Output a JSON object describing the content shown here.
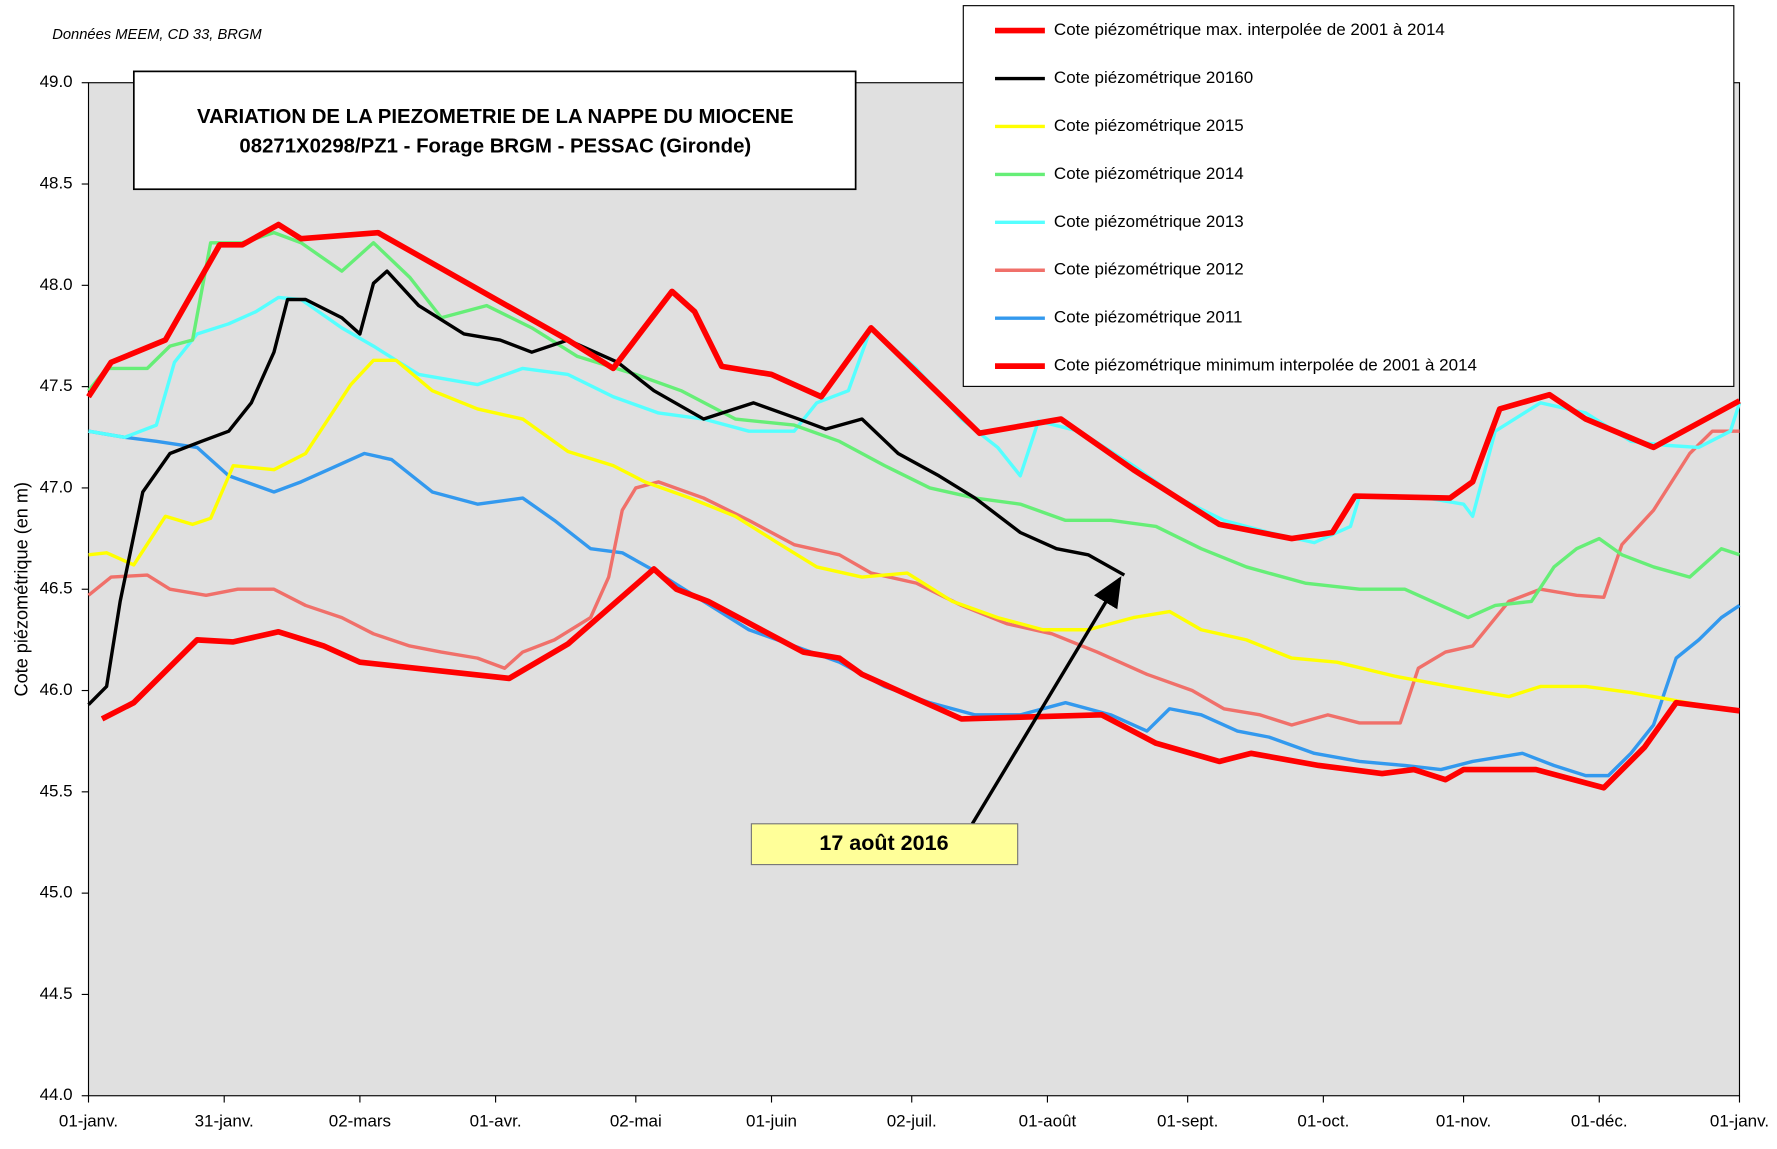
{
  "chart_data": {
    "type": "line",
    "title": [
      "VARIATION DE LA PIEZOMETRIE DE LA NAPPE DU MIOCENE",
      "08271X0298/PZ1  - Forage BRGM - PESSAC (Gironde)"
    ],
    "source": "Données MEEM, CD 33, BRGM",
    "y_label": "Cote piézométrique (en m)",
    "annotation": "17 août 2016",
    "xlim": [
      0,
      365
    ],
    "xticks": [
      {
        "value": 0,
        "label": "01-janv."
      },
      {
        "value": 30,
        "label": "31-janv."
      },
      {
        "value": 60,
        "label": "02-mars"
      },
      {
        "value": 90,
        "label": "01-avr."
      },
      {
        "value": 121,
        "label": "02-mai"
      },
      {
        "value": 151,
        "label": "01-juin"
      },
      {
        "value": 182,
        "label": "02-juil."
      },
      {
        "value": 212,
        "label": "01-août"
      },
      {
        "value": 243,
        "label": "01-sept."
      },
      {
        "value": 273,
        "label": "01-oct."
      },
      {
        "value": 304,
        "label": "01-nov."
      },
      {
        "value": 334,
        "label": "01-déc."
      },
      {
        "value": 365,
        "label": "01-janv."
      }
    ],
    "ylim": [
      44,
      49
    ],
    "yticks": [
      {
        "value": 44,
        "label": "44.0"
      },
      44.5,
      {
        "value": 45,
        "label": "45.0"
      },
      45.5,
      {
        "value": 46,
        "label": "46.0"
      },
      46.5,
      {
        "value": 47,
        "label": "47.0"
      },
      47.5,
      {
        "value": 48,
        "label": "48.0"
      },
      48.5,
      {
        "value": 49,
        "label": "49.0"
      }
    ],
    "grid": false,
    "series": [
      {
        "name": "Cote piézométrique max. interpolée de 2001 à 2014",
        "color": "#ff0000",
        "x": [
          0,
          5,
          17,
          29,
          34,
          42,
          47,
          64,
          106,
          116,
          129,
          134,
          140,
          151,
          162,
          173,
          197,
          215,
          231,
          250,
          266,
          275,
          280,
          301,
          306,
          312,
          323,
          331,
          346,
          365
        ],
        "values": [
          47.45,
          47.62,
          47.73,
          48.2,
          48.2,
          48.3,
          48.23,
          48.26,
          47.73,
          47.59,
          47.97,
          47.87,
          47.6,
          47.56,
          47.45,
          47.79,
          47.27,
          47.34,
          47.09,
          46.82,
          46.75,
          46.78,
          46.96,
          46.95,
          47.03,
          47.39,
          47.46,
          47.34,
          47.2,
          47.43
        ]
      },
      {
        "name": "Cote piézométrique 20160",
        "color": "#000000",
        "x": [
          0,
          4,
          7,
          12,
          18,
          25,
          31,
          36,
          41,
          44,
          48,
          56,
          60,
          63,
          66,
          73,
          83,
          91,
          98,
          106,
          117,
          125,
          136,
          147,
          157,
          163,
          171,
          179,
          188,
          196,
          206,
          214,
          221,
          229
        ],
        "values": [
          45.93,
          46.02,
          46.44,
          46.98,
          47.17,
          47.23,
          47.28,
          47.42,
          47.67,
          47.93,
          47.93,
          47.84,
          47.76,
          48.01,
          48.07,
          47.9,
          47.76,
          47.73,
          47.67,
          47.73,
          47.62,
          47.48,
          47.34,
          47.42,
          47.34,
          47.29,
          47.34,
          47.17,
          47.06,
          46.95,
          46.78,
          46.7,
          46.67,
          46.57
        ]
      },
      {
        "name": "Cote piézométrique 2015",
        "color": "#ffff00",
        "x": [
          0,
          4,
          10,
          17,
          23,
          27,
          32,
          41,
          48,
          53,
          58,
          63,
          68,
          76,
          86,
          96,
          106,
          116,
          123,
          133,
          143,
          153,
          161,
          171,
          181,
          191,
          201,
          211,
          221,
          231,
          239,
          246,
          256,
          266,
          276,
          289,
          301,
          314,
          321,
          331,
          341,
          351,
          361
        ],
        "values": [
          46.67,
          46.68,
          46.62,
          46.86,
          46.82,
          46.85,
          47.11,
          47.09,
          47.17,
          47.34,
          47.51,
          47.63,
          47.63,
          47.48,
          47.39,
          47.34,
          47.18,
          47.11,
          47.03,
          46.95,
          46.86,
          46.72,
          46.61,
          46.56,
          46.58,
          46.44,
          46.36,
          46.3,
          46.3,
          46.36,
          46.39,
          46.3,
          46.25,
          46.16,
          46.14,
          46.07,
          46.02,
          45.97,
          46.02,
          46.02,
          45.99,
          45.95,
          45.91
        ]
      },
      {
        "name": "Cote piézométrique 2014",
        "color": "#66ee77",
        "x": [
          0,
          4,
          13,
          18,
          23,
          27,
          34,
          41,
          47,
          56,
          63,
          71,
          78,
          88,
          98,
          108,
          121,
          131,
          143,
          156,
          166,
          176,
          186,
          196,
          206,
          216,
          226,
          236,
          246,
          256,
          269,
          281,
          291,
          299,
          305,
          311,
          319,
          324,
          329,
          334,
          339,
          346,
          354,
          361,
          365
        ],
        "values": [
          47.48,
          47.59,
          47.59,
          47.7,
          47.73,
          48.21,
          48.21,
          48.26,
          48.21,
          48.07,
          48.21,
          48.04,
          47.84,
          47.9,
          47.79,
          47.65,
          47.56,
          47.48,
          47.34,
          47.31,
          47.23,
          47.11,
          47.0,
          46.95,
          46.92,
          46.84,
          46.84,
          46.81,
          46.7,
          46.61,
          46.53,
          46.5,
          46.5,
          46.42,
          46.36,
          46.42,
          46.44,
          46.61,
          46.7,
          46.75,
          46.67,
          46.61,
          46.56,
          46.7,
          46.67
        ]
      },
      {
        "name": "Cote piézométrique 2013",
        "color": "#55ffff",
        "x": [
          0,
          8,
          15,
          19,
          24,
          31,
          37,
          42,
          47,
          56,
          63,
          73,
          86,
          96,
          106,
          116,
          126,
          136,
          146,
          156,
          161,
          168,
          173,
          183,
          193,
          201,
          206,
          210,
          219,
          231,
          241,
          251,
          261,
          271,
          279,
          281,
          296,
          304,
          306,
          311,
          321,
          331,
          341,
          349,
          356,
          363,
          365
        ],
        "values": [
          47.28,
          47.25,
          47.31,
          47.62,
          47.76,
          47.81,
          47.87,
          47.94,
          47.93,
          47.79,
          47.7,
          47.56,
          47.51,
          47.59,
          47.56,
          47.45,
          47.37,
          47.34,
          47.28,
          47.28,
          47.42,
          47.48,
          47.79,
          47.59,
          47.34,
          47.2,
          47.06,
          47.33,
          47.28,
          47.11,
          46.95,
          46.84,
          46.78,
          46.73,
          46.81,
          46.96,
          46.95,
          46.92,
          46.86,
          47.28,
          47.42,
          47.37,
          47.23,
          47.21,
          47.2,
          47.28,
          47.42
        ]
      },
      {
        "name": "Cote piézométrique 2012",
        "color": "#f0706a",
        "x": [
          0,
          5,
          13,
          18,
          26,
          33,
          41,
          48,
          56,
          63,
          71,
          78,
          86,
          92,
          96,
          103,
          111,
          115,
          118,
          121,
          126,
          136,
          146,
          156,
          166,
          173,
          183,
          193,
          203,
          213,
          223,
          234,
          244,
          251,
          259,
          266,
          274,
          281,
          290,
          294,
          300,
          306,
          314,
          321,
          329,
          335,
          339,
          346,
          354,
          359,
          365
        ],
        "values": [
          46.47,
          46.56,
          46.57,
          46.5,
          46.47,
          46.5,
          46.5,
          46.42,
          46.36,
          46.28,
          46.22,
          46.19,
          46.16,
          46.11,
          46.19,
          46.25,
          46.36,
          46.56,
          46.89,
          47.0,
          47.03,
          46.95,
          46.84,
          46.72,
          46.67,
          46.58,
          46.53,
          46.42,
          46.33,
          46.28,
          46.19,
          46.08,
          46.0,
          45.91,
          45.88,
          45.83,
          45.88,
          45.84,
          45.84,
          46.11,
          46.19,
          46.22,
          46.44,
          46.5,
          46.47,
          46.46,
          46.72,
          46.89,
          47.17,
          47.28,
          47.28
        ]
      },
      {
        "name": "Cote piézométrique 2011",
        "color": "#3399ee",
        "x": [
          0,
          8,
          15,
          24,
          31,
          41,
          47,
          53,
          61,
          67,
          76,
          86,
          96,
          103,
          111,
          118,
          126,
          136,
          146,
          156,
          166,
          176,
          186,
          196,
          206,
          216,
          226,
          234,
          239,
          246,
          254,
          261,
          271,
          281,
          291,
          299,
          306,
          317,
          324,
          331,
          336,
          341,
          346,
          351,
          356,
          361,
          365
        ],
        "values": [
          47.28,
          47.25,
          47.23,
          47.2,
          47.06,
          46.98,
          47.03,
          47.09,
          47.17,
          47.14,
          46.98,
          46.92,
          46.95,
          46.84,
          46.7,
          46.68,
          46.58,
          46.44,
          46.3,
          46.22,
          46.14,
          46.02,
          45.94,
          45.88,
          45.88,
          45.94,
          45.88,
          45.8,
          45.91,
          45.88,
          45.8,
          45.77,
          45.69,
          45.65,
          45.63,
          45.61,
          45.65,
          45.69,
          45.63,
          45.58,
          45.58,
          45.69,
          45.83,
          46.16,
          46.25,
          46.36,
          46.42
        ]
      },
      {
        "name": "Cote piézométrique minimum interpolée de 2001 à 2014",
        "color": "#ff0000",
        "x": [
          3,
          10,
          24,
          32,
          42,
          52,
          60,
          93,
          106,
          125,
          130,
          137,
          158,
          166,
          171,
          193,
          224,
          236,
          250,
          257,
          272,
          286,
          293,
          300,
          304,
          320,
          335,
          344,
          351,
          365
        ],
        "values": [
          45.86,
          45.94,
          46.25,
          46.24,
          46.29,
          46.22,
          46.14,
          46.06,
          46.23,
          46.6,
          46.5,
          46.44,
          46.19,
          46.16,
          46.08,
          45.86,
          45.88,
          45.74,
          45.65,
          45.69,
          45.63,
          45.59,
          45.61,
          45.56,
          45.61,
          45.61,
          45.52,
          45.72,
          45.94,
          45.9
        ]
      }
    ]
  }
}
